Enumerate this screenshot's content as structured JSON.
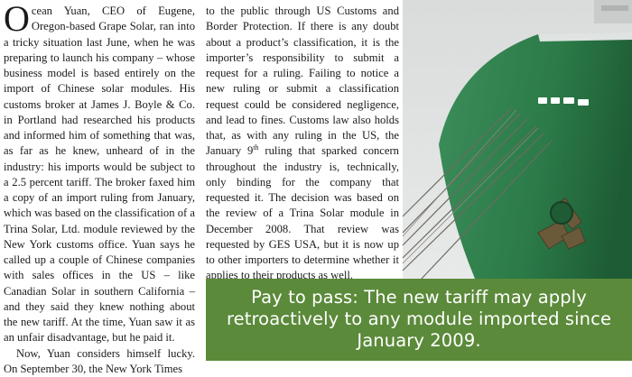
{
  "article": {
    "col1": {
      "dropcap": "O",
      "p1": "cean Yuan, CEO of Eugene, Oregon-based Grape Solar, ran into a tricky situation last June, when he was preparing to launch his company – whose business model is based entirely on the import of Chinese solar modules. His customs broker at James J. Boyle & Co. in Portland had researched his products and informed him of something that was, as far as he knew, unheard of in the industry: his imports would be subject to a 2.5 percent tariff. The broker faxed him a copy of an import ruling from January, which was based on the classification of a Trina Solar, Ltd. module reviewed by the New York customs office. Yuan says he called up a couple of Chinese companies with sales offices in the US – like Canadian Solar in southern California – and they said they knew nothing about the new tariff. At the time, Yuan saw it as an unfair disadvantage, but he paid it.",
      "p2": "Now, Yuan considers himself lucky. On September 30, the New York Times"
    },
    "col2": {
      "p1_a": "to the public through US Customs and Border Protection. If there is any doubt about a product’s classification, it is the importer’s responsibility to submit a request for a ruling. Failing to notice a new ruling or submit a classification request could be considered negligence, and lead to fines. Customs law also holds that, as with any ruling in the US, the January 9",
      "p1_sup": "th",
      "p1_b": " ruling that sparked concern throughout the industry is, technically, only binding for the company that requested it. The decision was based on the review of a Trina Solar module in December 2008. That review was requested by GES USA, but it is now up to other importers to determine whether it applies to their products as well."
    }
  },
  "caption": {
    "text": "Pay to pass: The new tariff may apply retroactively to any module imported since January 2009."
  },
  "photo": {
    "icon": "cargo-ship-bow-image",
    "colors": {
      "hull_green": "#2e7d4a",
      "hull_dark": "#1f5c36",
      "hull_red": "#a8463a",
      "sky": "#e3e5e4"
    }
  }
}
